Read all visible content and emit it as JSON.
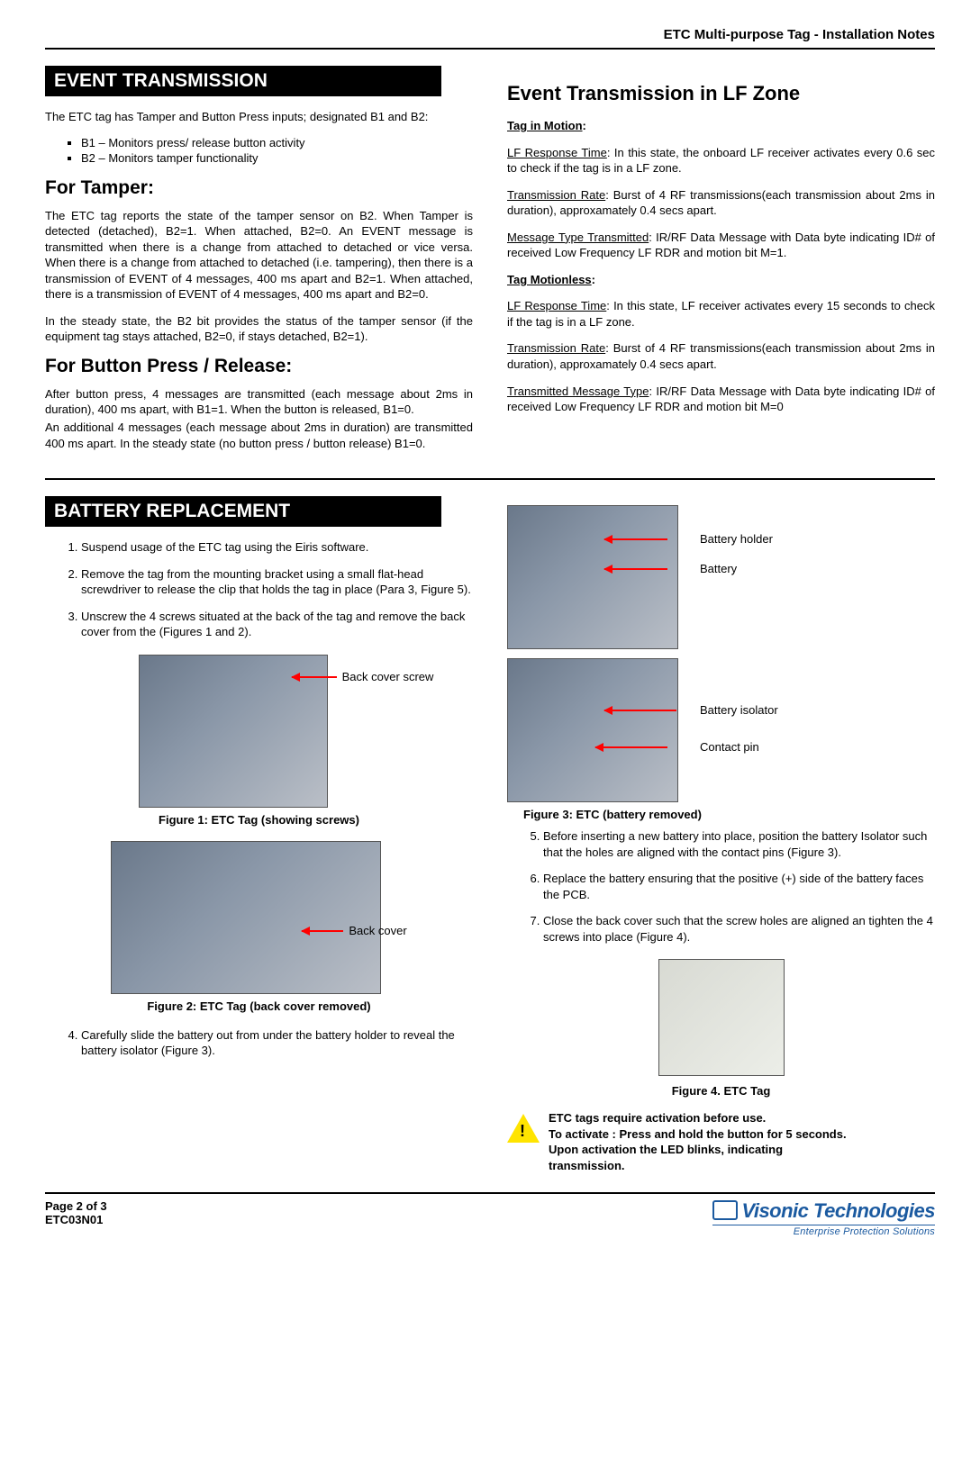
{
  "doc": {
    "header": "ETC Multi-purpose Tag - Installation Notes",
    "page_line": "Page 2 of 3",
    "doc_code": "ETC03N01"
  },
  "colors": {
    "section_bar_bg": "#000000",
    "section_bar_fg": "#ffffff",
    "arrow": "#ff0000",
    "logo": "#1b5aa0",
    "warn": "#ffe400"
  },
  "event": {
    "section_title": "EVENT TRANSMISSION",
    "intro": "The ETC tag has Tamper and Button Press inputs; designated B1 and B2:",
    "bullets": [
      "B1 – Monitors press/ release button activity",
      "B2 – Monitors tamper functionality"
    ],
    "tamper_heading": "For Tamper:",
    "tamper_p1": "The ETC tag reports the state of the tamper sensor on B2. When Tamper is detected (detached), B2=1. When attached, B2=0. An EVENT message is transmitted when there is a change from attached to detached or vice versa. When there is a change from attached to detached (i.e. tampering), then there is a transmission of EVENT of 4 messages, 400 ms apart and B2=1. When attached, there is a transmission of EVENT of 4 messages, 400 ms apart and B2=0.",
    "tamper_p2": "In the steady state, the B2 bit provides the status of the tamper sensor (if the equipment tag stays attached, B2=0, if stays detached, B2=1).",
    "button_heading": "For Button Press / Release:",
    "button_p1": "After button press, 4 messages are transmitted (each message about 2ms in duration), 400 ms apart, with B1=1. When the button is released, B1=0.",
    "button_p2": "An additional 4 messages (each message about 2ms in duration) are transmitted 400 ms apart. In the steady state (no button press / button release) B1=0."
  },
  "lf": {
    "heading": "Event Transmission in LF Zone",
    "motion_title": "Tag in Motion",
    "motion_items": [
      {
        "label": "LF Response Time",
        "text": ": In this state, the onboard LF receiver activates every 0.6 sec to check if the tag is in a LF zone."
      },
      {
        "label": "Transmission Rate",
        "text": ": Burst of 4 RF transmissions(each transmission about 2ms in duration), approxamately 0.4 secs apart."
      },
      {
        "label": "Message Type Transmitted",
        "text": ": IR/RF Data Message with Data byte indicating ID# of received Low Frequency LF RDR and motion bit M=1."
      }
    ],
    "motionless_title": "Tag Motionless",
    "motionless_items": [
      {
        "label": "LF Response Time",
        "text": ": In this state, LF receiver activates every 15 seconds to check if the tag is in a LF zone."
      },
      {
        "label": "Transmission Rate",
        "text": ": Burst of 4 RF transmissions(each transmission about 2ms in duration), approxamately 0.4 secs apart."
      },
      {
        "label": "Transmitted Message Type",
        "text": ": IR/RF Data Message with Data byte indicating ID# of received Low Frequency LF RDR and motion bit M=0"
      }
    ]
  },
  "battery": {
    "section_title": "BATTERY REPLACEMENT",
    "steps_a": [
      "Suspend usage of the ETC tag using the Eiris software.",
      "Remove the tag from the mounting bracket using a small flat-head screwdriver to release the clip that holds the tag in place (Para 3, Figure 5).",
      "Unscrew the 4 screws situated at the back of the tag and remove the back cover from the (Figures 1 and 2)."
    ],
    "fig1_caption": "Figure 1: ETC Tag (showing screws)",
    "fig1_callout": "Back cover screw",
    "fig2_caption": "Figure 2: ETC Tag (back cover removed)",
    "fig2_callout": "Back cover",
    "step4": "Carefully slide the battery out from under the battery holder to reveal the battery isolator (Figure 3).",
    "fig3_caption": "Figure 3: ETC (battery removed)",
    "fig3_callouts": [
      "Battery holder",
      "Battery",
      "Battery isolator",
      "Contact pin"
    ],
    "steps_b": [
      "Before inserting a new battery into place, position the battery Isolator such that the holes are aligned with the contact pins (Figure 3).",
      "Replace the battery ensuring that the positive (+) side of the battery faces the PCB.",
      "Close the back cover such that the screw holes are aligned an tighten the 4 screws into place (Figure 4)."
    ],
    "fig4_caption": "Figure 4. ETC Tag",
    "warning": "ETC tags require activation before use.\nTo activate : Press and hold the button for 5 seconds.\nUpon activation the LED blinks, indicating transmission."
  },
  "logo": {
    "brand": "Visonic Technologies",
    "tagline": "Enterprise Protection Solutions"
  }
}
